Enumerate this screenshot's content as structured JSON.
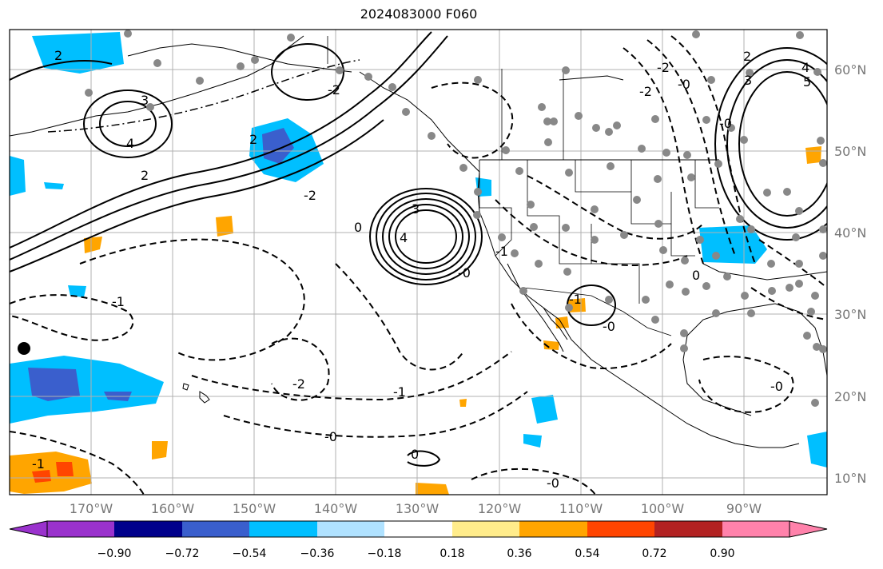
{
  "title": "2024083000 F060",
  "lat_labels": [
    "60°N",
    "50°N",
    "40°N",
    "30°N",
    "20°N",
    "10°N"
  ],
  "lon_labels": [
    "170°W",
    "160°W",
    "150°W",
    "140°W",
    "130°W",
    "120°W",
    "110°W",
    "100°W",
    "90°W"
  ],
  "colorbar": {
    "ticks": [
      "−0.90",
      "−0.72",
      "−0.54",
      "−0.36",
      "−0.18",
      "0.18",
      "0.36",
      "0.54",
      "0.72",
      "0.90"
    ],
    "colors": [
      "#9a32cd",
      "#00008b",
      "#3a5fcd",
      "#00bfff",
      "#b0e2ff",
      "#ffffff",
      "#ffec8b",
      "#ffa500",
      "#ff4500",
      "#b22222",
      "#ff82ab"
    ]
  },
  "contour_labels": [
    "2",
    "3",
    "4",
    "2",
    "2",
    "3",
    "4",
    "-2",
    "0",
    "-1",
    "-2",
    "-1",
    "-0",
    "0",
    "-0",
    "-1",
    "-1",
    "-0",
    "-2",
    "-2",
    "5",
    "4",
    "3",
    "2",
    "-0",
    "-0",
    "-0",
    "-0",
    "0",
    "-1",
    "-2"
  ]
}
